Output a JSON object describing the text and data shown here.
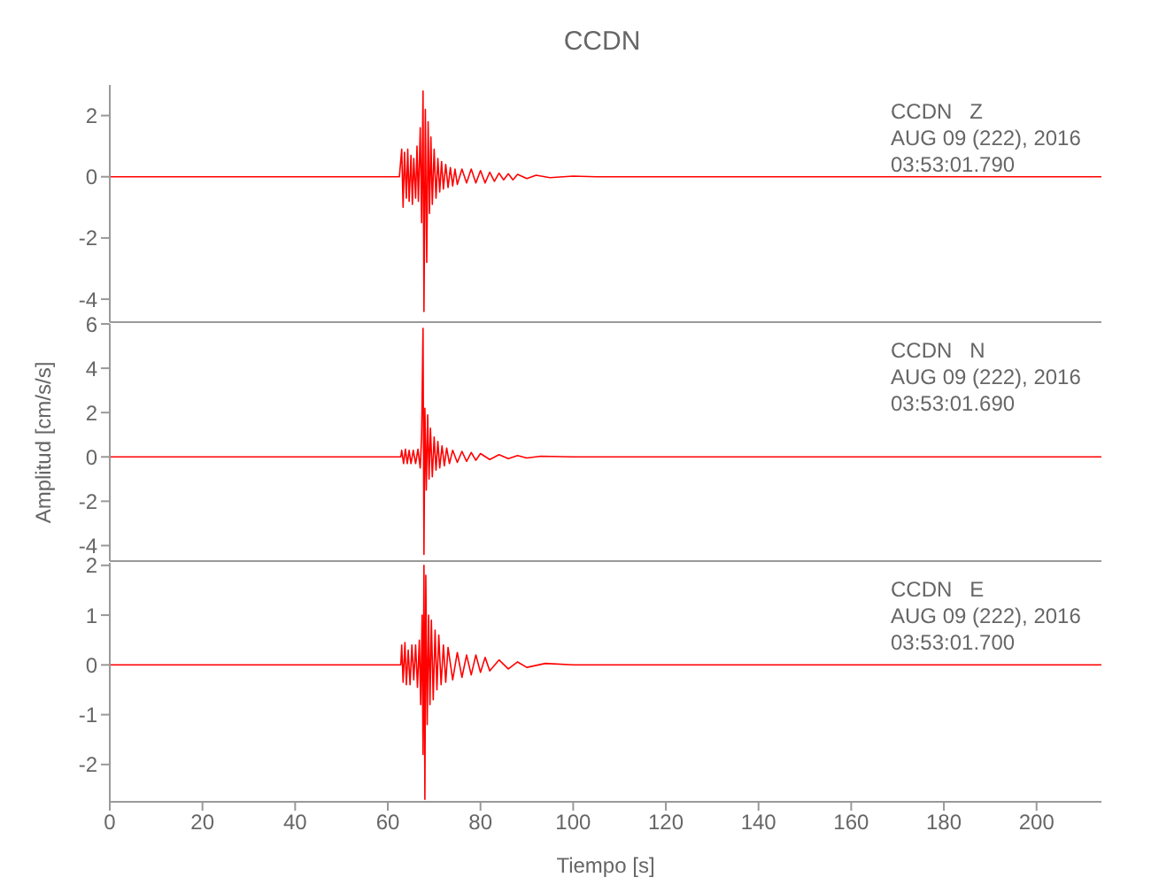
{
  "chart_data": [
    {
      "type": "line",
      "title": "CCDN",
      "annotations": [
        "CCDN   Z",
        "AUG 09 (222), 2016",
        "03:53:01.790"
      ],
      "xlim": [
        0,
        214
      ],
      "xticks": [
        0,
        20,
        40,
        60,
        80,
        100,
        120,
        140,
        160,
        180,
        200
      ],
      "ylim": [
        -4.75,
        3
      ],
      "yticks": [
        -4,
        -2,
        0,
        2
      ],
      "tick_labels": "y",
      "series": [
        {
          "color": "#ff0000",
          "x": [
            0,
            62.5,
            63,
            63.3,
            63.6,
            64,
            64.3,
            64.6,
            65,
            65.3,
            65.6,
            66,
            66.3,
            66.6,
            67,
            67.3,
            67.6,
            67.8,
            68.1,
            68.4,
            68.7,
            69,
            69.3,
            69.6,
            70,
            70.4,
            70.8,
            71.2,
            71.6,
            72,
            72.5,
            73,
            73.5,
            74,
            74.5,
            75,
            76,
            77,
            78,
            79,
            80,
            81,
            82,
            83,
            84,
            85,
            86,
            87,
            88,
            90,
            92,
            95,
            100,
            105,
            214
          ],
          "values": [
            0,
            0,
            0.9,
            -1.0,
            0.8,
            -0.7,
            0.9,
            -0.8,
            0.7,
            -0.9,
            0.6,
            -0.7,
            1.0,
            -0.8,
            1.6,
            -1.5,
            2.8,
            -4.4,
            2.2,
            -2.8,
            1.8,
            -1.2,
            1.3,
            -0.9,
            0.9,
            -0.7,
            0.6,
            -0.5,
            0.5,
            -0.4,
            0.4,
            -0.35,
            0.3,
            -0.3,
            0.25,
            -0.25,
            0.25,
            -0.2,
            0.25,
            -0.2,
            0.2,
            -0.2,
            0.15,
            -0.15,
            0.12,
            -0.1,
            0.1,
            -0.1,
            0.08,
            -0.06,
            0.05,
            -0.03,
            0.02,
            0,
            0
          ]
        }
      ]
    },
    {
      "type": "line",
      "ylabel": "Amplitud [cm/s/s]",
      "annotations": [
        "CCDN   N",
        "AUG 09 (222), 2016",
        "03:53:01.690"
      ],
      "xlim": [
        0,
        214
      ],
      "xticks": [
        0,
        20,
        40,
        60,
        80,
        100,
        120,
        140,
        160,
        180,
        200
      ],
      "ylim": [
        -4.7,
        6
      ],
      "yticks": [
        -4,
        -2,
        0,
        2,
        4,
        6
      ],
      "tick_labels": "y",
      "series": [
        {
          "color": "#ff0000",
          "x": [
            0,
            62.8,
            63,
            63.4,
            63.8,
            64.2,
            64.6,
            65,
            65.5,
            66,
            66.5,
            67,
            67.3,
            67.6,
            67.8,
            68,
            68.3,
            68.6,
            68.9,
            69.2,
            69.6,
            70,
            70.4,
            70.8,
            71.2,
            71.7,
            72.2,
            72.7,
            73.3,
            74,
            75,
            76,
            77,
            78,
            79,
            80,
            82,
            84,
            86,
            88,
            90,
            93,
            100,
            214
          ],
          "values": [
            0,
            0,
            0.3,
            -0.3,
            0.35,
            -0.3,
            0.3,
            -0.3,
            0.3,
            -0.3,
            0.35,
            -0.5,
            1.0,
            5.8,
            -4.4,
            2.2,
            -1.5,
            1.9,
            -1.0,
            1.3,
            -0.9,
            0.9,
            -0.6,
            0.7,
            -0.5,
            0.5,
            -0.4,
            0.4,
            -0.3,
            0.3,
            -0.25,
            0.25,
            -0.2,
            0.2,
            -0.15,
            0.15,
            -0.12,
            0.1,
            -0.08,
            0.06,
            -0.05,
            0.03,
            0,
            0
          ]
        }
      ]
    },
    {
      "type": "line",
      "xlabel": "Tiempo [s]",
      "annotations": [
        "CCDN   E",
        "AUG 09 (222), 2016",
        "03:53:01.700"
      ],
      "xlim": [
        0,
        214
      ],
      "xticks": [
        0,
        20,
        40,
        60,
        80,
        100,
        120,
        140,
        160,
        180,
        200
      ],
      "ylim": [
        -2.75,
        2.05
      ],
      "yticks": [
        -2,
        -1,
        0,
        1,
        2
      ],
      "series": [
        {
          "color": "#ff0000",
          "x": [
            0,
            62.8,
            63,
            63.3,
            63.7,
            64,
            64.4,
            64.8,
            65.2,
            65.6,
            66,
            66.4,
            66.8,
            67.1,
            67.4,
            67.6,
            67.8,
            68,
            68.2,
            68.5,
            68.8,
            69.1,
            69.4,
            69.8,
            70.2,
            70.6,
            71,
            71.5,
            72,
            72.5,
            73,
            74,
            75,
            76,
            77,
            78,
            79,
            80,
            81,
            82,
            84,
            86,
            88,
            90,
            94,
            100,
            214
          ],
          "values": [
            0,
            0,
            0.4,
            -0.35,
            0.45,
            -0.4,
            0.3,
            -0.4,
            0.4,
            -0.3,
            0.4,
            -0.45,
            0.5,
            -0.8,
            1.0,
            -1.8,
            2.0,
            -2.7,
            1.8,
            -1.2,
            1.0,
            -0.8,
            0.9,
            -0.7,
            0.7,
            -0.5,
            0.6,
            -0.4,
            0.4,
            -0.35,
            0.35,
            -0.3,
            0.25,
            -0.25,
            0.2,
            -0.2,
            0.2,
            -0.15,
            0.15,
            -0.12,
            0.1,
            -0.08,
            0.06,
            -0.05,
            0.03,
            0,
            0
          ]
        }
      ]
    }
  ]
}
